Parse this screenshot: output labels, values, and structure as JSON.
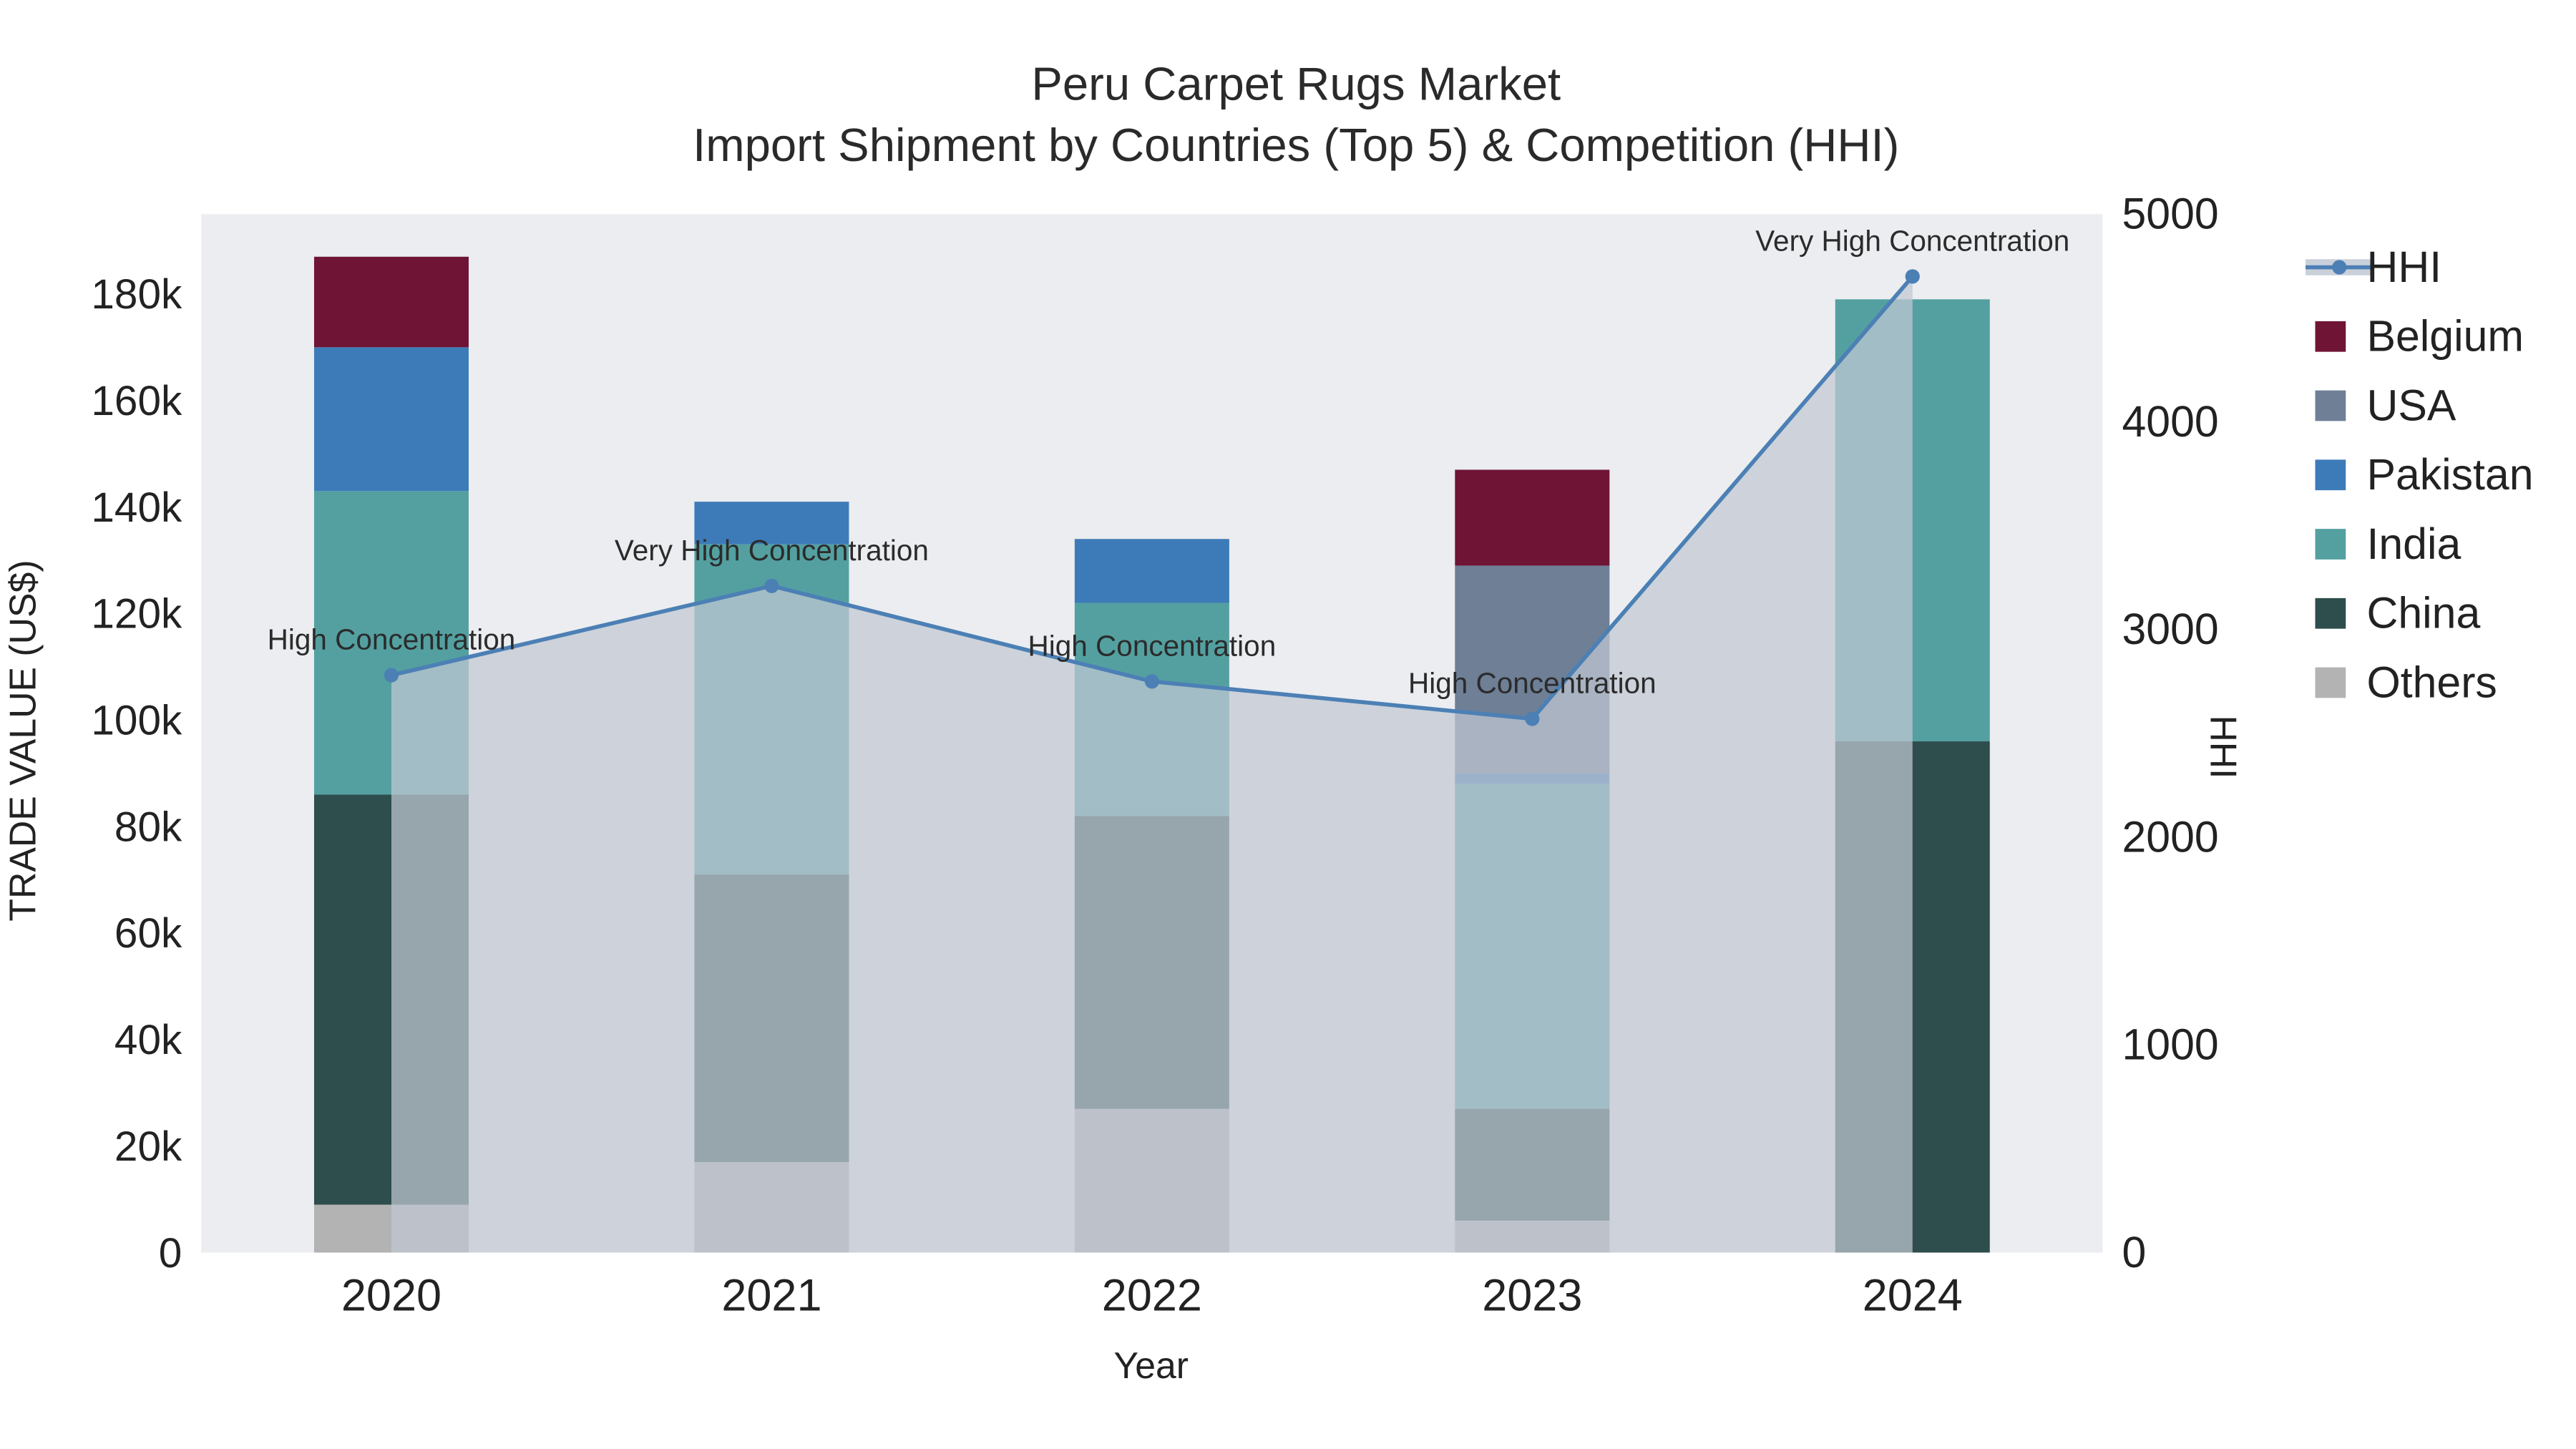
{
  "title": {
    "line1": "Peru Carpet Rugs Market",
    "line2": "Import Shipment by Countries (Top 5) & Competition (HHI)"
  },
  "axes": {
    "x_title": "Year",
    "y_left_title": "TRADE VALUE (US$)",
    "y_right_title": "HHI"
  },
  "legend": {
    "items": [
      {
        "name": "HHI",
        "type": "line",
        "color": "#4c80b5"
      },
      {
        "name": "Belgium",
        "type": "square",
        "color": "#6f1435"
      },
      {
        "name": "USA",
        "type": "square",
        "color": "#6e7f96"
      },
      {
        "name": "Pakistan",
        "type": "square",
        "color": "#3d7bb8"
      },
      {
        "name": "India",
        "type": "square",
        "color": "#54a0a1"
      },
      {
        "name": "China",
        "type": "square",
        "color": "#2e4d4d"
      },
      {
        "name": "Others",
        "type": "square",
        "color": "#b3b3b3"
      }
    ]
  },
  "chart_data": {
    "type": "bar",
    "subtype": "stacked-bars-with-hhi-line",
    "title": "Peru Carpet Rugs Market — Import Shipment by Countries (Top 5) & Competition (HHI)",
    "categories": [
      "2020",
      "2021",
      "2022",
      "2023",
      "2024"
    ],
    "bar_stack_order_bottom_to_top": [
      "Others",
      "China",
      "India",
      "Pakistan",
      "USA",
      "Belgium"
    ],
    "bar_series": [
      {
        "name": "Others",
        "color": "#b3b3b3",
        "values": [
          9000,
          17000,
          27000,
          6000,
          0
        ]
      },
      {
        "name": "China",
        "color": "#2e4d4d",
        "values": [
          77000,
          54000,
          55000,
          21000,
          96000
        ]
      },
      {
        "name": "India",
        "color": "#54a0a1",
        "values": [
          57000,
          62000,
          40000,
          61000,
          83000
        ]
      },
      {
        "name": "Pakistan",
        "color": "#3d7bb8",
        "values": [
          27000,
          8000,
          12000,
          2000,
          0
        ]
      },
      {
        "name": "USA",
        "color": "#6e7f96",
        "values": [
          0,
          0,
          0,
          39000,
          0
        ]
      },
      {
        "name": "Belgium",
        "color": "#6f1435",
        "values": [
          17000,
          0,
          0,
          18000,
          0
        ]
      }
    ],
    "bar_totals": [
      187000,
      141000,
      134000,
      147000,
      179000
    ],
    "line_series": {
      "name": "HHI",
      "color": "#4c80b5",
      "fill": "rgba(192,200,211,0.72)",
      "values": [
        2780,
        3210,
        2750,
        2570,
        4700
      ]
    },
    "annotations": [
      {
        "x": "2020",
        "text": "High Concentration"
      },
      {
        "x": "2021",
        "text": "Very High Concentration"
      },
      {
        "x": "2022",
        "text": "High Concentration"
      },
      {
        "x": "2023",
        "text": "High Concentration"
      },
      {
        "x": "2024",
        "text": "Very High Concentration"
      }
    ],
    "x_title": "Year",
    "y_left": {
      "title": "TRADE VALUE (US$)",
      "min": 0,
      "max": 195000,
      "ticks": [
        0,
        20000,
        40000,
        60000,
        80000,
        100000,
        120000,
        140000,
        160000,
        180000
      ],
      "tick_labels": [
        "0",
        "20k",
        "40k",
        "60k",
        "80k",
        "100k",
        "120k",
        "140k",
        "160k",
        "180k"
      ]
    },
    "y_right": {
      "title": "HHI",
      "min": 0,
      "max": 5000,
      "ticks": [
        0,
        1000,
        2000,
        3000,
        4000,
        5000
      ],
      "tick_labels": [
        "0",
        "1000",
        "2000",
        "3000",
        "4000",
        "5000"
      ]
    },
    "grid": false,
    "legend_position": "right",
    "plot_bg": "#ebedf0"
  }
}
